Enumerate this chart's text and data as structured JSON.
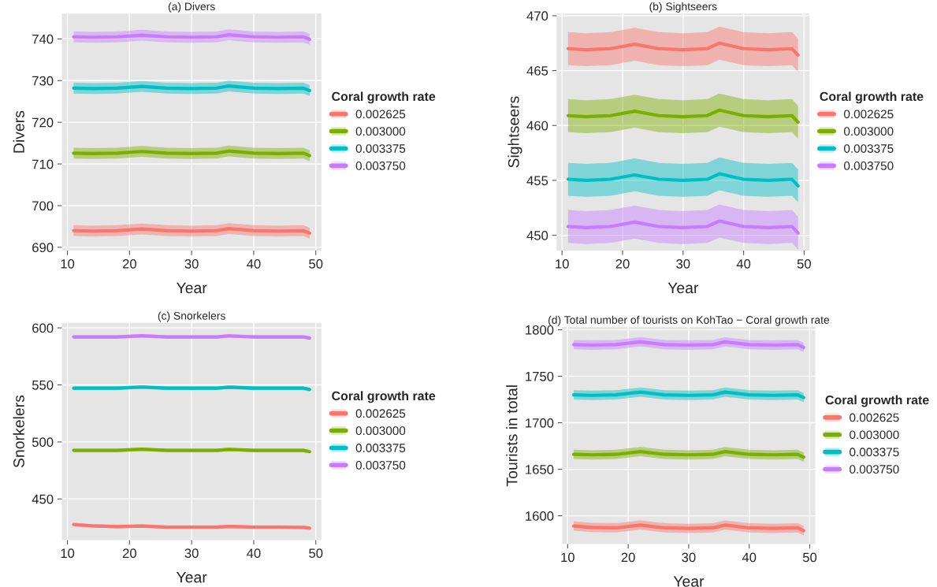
{
  "chart_data": [
    {
      "type": "line",
      "title": "(a) Divers",
      "xlabel": "Year",
      "ylabel": "Divers",
      "legend_title": "Coral growth rate",
      "legend": "right",
      "grid": true,
      "x": [
        11,
        14,
        18,
        22,
        26,
        30,
        34,
        36,
        40,
        44,
        48,
        49
      ],
      "xlim": [
        9.1,
        50.9
      ],
      "xticks": [
        10,
        20,
        30,
        40,
        50
      ],
      "ylim": [
        689.2,
        746.1
      ],
      "yticks": [
        690,
        700,
        710,
        720,
        730,
        740
      ],
      "series": [
        {
          "name": "0.002625",
          "color": "#f8766d",
          "values": [
            694.0,
            693.9,
            694.0,
            694.4,
            694.0,
            693.9,
            694.0,
            694.5,
            694.0,
            693.9,
            694.0,
            693.4
          ],
          "lower": [
            692.7,
            692.6,
            692.7,
            693.1,
            692.7,
            692.6,
            692.7,
            693.2,
            692.7,
            692.6,
            692.7,
            692.1
          ],
          "upper": [
            695.3,
            695.2,
            695.3,
            695.7,
            695.3,
            695.2,
            695.3,
            695.8,
            695.3,
            695.2,
            695.3,
            694.7
          ]
        },
        {
          "name": "0.003000",
          "color": "#7cae00",
          "values": [
            712.6,
            712.5,
            712.6,
            713.0,
            712.6,
            712.5,
            712.6,
            713.1,
            712.6,
            712.5,
            712.6,
            712.0
          ],
          "lower": [
            711.3,
            711.2,
            711.3,
            711.7,
            711.3,
            711.2,
            711.3,
            711.8,
            711.3,
            711.2,
            711.3,
            710.7
          ],
          "upper": [
            713.9,
            713.8,
            713.9,
            714.3,
            713.9,
            713.8,
            713.9,
            714.4,
            713.9,
            713.8,
            713.9,
            713.3
          ]
        },
        {
          "name": "0.003375",
          "color": "#00bfc4",
          "values": [
            728.2,
            728.1,
            728.2,
            728.6,
            728.2,
            728.1,
            728.2,
            728.7,
            728.2,
            728.1,
            728.2,
            727.6
          ],
          "lower": [
            726.9,
            726.8,
            726.9,
            727.3,
            726.9,
            726.8,
            726.9,
            727.4,
            726.9,
            726.8,
            726.9,
            726.3
          ],
          "upper": [
            729.5,
            729.4,
            729.5,
            729.9,
            729.5,
            729.4,
            729.5,
            730.0,
            729.5,
            729.4,
            729.5,
            728.9
          ]
        },
        {
          "name": "0.003750",
          "color": "#c77cff",
          "values": [
            740.5,
            740.4,
            740.5,
            740.9,
            740.5,
            740.4,
            740.5,
            741.0,
            740.5,
            740.4,
            740.5,
            739.9
          ],
          "lower": [
            739.2,
            739.1,
            739.2,
            739.6,
            739.2,
            739.1,
            739.2,
            739.7,
            739.2,
            739.1,
            739.2,
            738.6
          ],
          "upper": [
            741.8,
            741.7,
            741.8,
            742.2,
            741.8,
            741.7,
            741.8,
            742.3,
            741.8,
            741.7,
            741.8,
            741.2
          ]
        }
      ]
    },
    {
      "type": "line",
      "title": "(b) Sightseers",
      "xlabel": "Year",
      "ylabel": "Sightseers",
      "legend_title": "Coral growth rate",
      "legend": "right",
      "grid": true,
      "x": [
        11,
        14,
        18,
        22,
        26,
        30,
        34,
        36,
        40,
        44,
        48,
        49
      ],
      "xlim": [
        9.1,
        50.9
      ],
      "xticks": [
        10,
        20,
        30,
        40,
        50
      ],
      "ylim": [
        448.6,
        470.2
      ],
      "yticks": [
        450,
        455,
        460,
        465,
        470
      ],
      "series": [
        {
          "name": "0.002625",
          "color": "#f8766d",
          "values": [
            467.0,
            466.9,
            467.0,
            467.4,
            467.0,
            466.9,
            467.0,
            467.5,
            467.0,
            466.9,
            467.0,
            466.4
          ],
          "lower": [
            465.5,
            465.4,
            465.5,
            465.9,
            465.5,
            465.4,
            465.5,
            466.0,
            465.5,
            465.4,
            465.5,
            464.9
          ],
          "upper": [
            468.5,
            468.4,
            468.5,
            468.9,
            468.5,
            468.4,
            468.5,
            469.0,
            468.5,
            468.4,
            468.5,
            467.9
          ]
        },
        {
          "name": "0.003000",
          "color": "#7cae00",
          "values": [
            460.9,
            460.8,
            460.9,
            461.3,
            460.9,
            460.8,
            460.9,
            461.4,
            460.9,
            460.8,
            460.9,
            460.3
          ],
          "lower": [
            459.4,
            459.3,
            459.4,
            459.8,
            459.4,
            459.3,
            459.4,
            459.9,
            459.4,
            459.3,
            459.4,
            458.8
          ],
          "upper": [
            462.4,
            462.3,
            462.4,
            462.8,
            462.4,
            462.3,
            462.4,
            462.9,
            462.4,
            462.3,
            462.4,
            461.8
          ]
        },
        {
          "name": "0.003375",
          "color": "#00bfc4",
          "values": [
            455.1,
            455.0,
            455.1,
            455.5,
            455.1,
            455.0,
            455.1,
            455.6,
            455.1,
            455.0,
            455.1,
            454.5
          ],
          "lower": [
            453.6,
            453.5,
            453.6,
            454.0,
            453.6,
            453.5,
            453.6,
            454.1,
            453.6,
            453.5,
            453.6,
            453.0
          ],
          "upper": [
            456.6,
            456.5,
            456.6,
            457.0,
            456.6,
            456.5,
            456.6,
            457.1,
            456.6,
            456.5,
            456.6,
            456.0
          ]
        },
        {
          "name": "0.003750",
          "color": "#c77cff",
          "values": [
            450.8,
            450.7,
            450.8,
            451.2,
            450.8,
            450.7,
            450.8,
            451.3,
            450.8,
            450.7,
            450.8,
            450.2
          ],
          "lower": [
            449.3,
            449.2,
            449.3,
            449.7,
            449.3,
            449.2,
            449.3,
            449.8,
            449.3,
            449.2,
            449.3,
            448.7
          ],
          "upper": [
            452.3,
            452.2,
            452.3,
            452.7,
            452.3,
            452.2,
            452.3,
            452.8,
            452.3,
            452.2,
            452.3,
            451.7
          ]
        }
      ]
    },
    {
      "type": "line",
      "title": "(c) Snorkelers",
      "xlabel": "Year",
      "ylabel": "Snorkelers",
      "legend_title": "Coral growth rate",
      "legend": "right",
      "grid": true,
      "x": [
        11,
        14,
        18,
        22,
        26,
        30,
        34,
        36,
        40,
        44,
        48,
        49
      ],
      "xlim": [
        9.1,
        50.9
      ],
      "xticks": [
        10,
        20,
        30,
        40,
        50
      ],
      "ylim": [
        414,
        604.4
      ],
      "yticks": [
        450,
        500,
        550,
        600
      ],
      "series": [
        {
          "name": "0.002625",
          "color": "#f8766d",
          "values": [
            427.6,
            426.5,
            425.8,
            426.3,
            425.3,
            425.3,
            425.3,
            425.9,
            425.3,
            425.3,
            425.1,
            424.5
          ],
          "lower": [
            426.1,
            425.0,
            424.3,
            424.8,
            423.8,
            423.8,
            423.8,
            424.4,
            423.8,
            423.8,
            423.6,
            423.0
          ],
          "upper": [
            429.1,
            428.0,
            427.3,
            427.8,
            426.8,
            426.8,
            426.8,
            427.4,
            426.8,
            426.8,
            426.6,
            426.0
          ]
        },
        {
          "name": "0.003000",
          "color": "#7cae00",
          "values": [
            492.6,
            492.6,
            492.6,
            493.6,
            492.6,
            492.6,
            492.6,
            493.5,
            492.6,
            492.6,
            492.6,
            491.5
          ],
          "lower": [
            491.1,
            491.1,
            491.1,
            492.1,
            491.1,
            491.1,
            491.1,
            492.0,
            491.1,
            491.1,
            491.1,
            490.0
          ],
          "upper": [
            494.1,
            494.1,
            494.1,
            495.1,
            494.1,
            494.1,
            494.1,
            495.0,
            494.1,
            494.1,
            494.1,
            493.0
          ]
        },
        {
          "name": "0.003375",
          "color": "#00bfc4",
          "values": [
            547.1,
            547.1,
            547.1,
            548.1,
            547.1,
            547.1,
            547.1,
            548.0,
            547.1,
            547.1,
            547.1,
            546.0
          ],
          "lower": [
            545.6,
            545.6,
            545.6,
            546.6,
            545.6,
            545.6,
            545.6,
            546.5,
            545.6,
            545.6,
            545.6,
            544.5
          ],
          "upper": [
            548.6,
            548.6,
            548.6,
            549.6,
            548.6,
            548.6,
            548.6,
            549.5,
            548.6,
            548.6,
            548.6,
            547.5
          ]
        },
        {
          "name": "0.003750",
          "color": "#c77cff",
          "values": [
            592.1,
            592.1,
            592.1,
            593.1,
            592.1,
            592.1,
            592.1,
            593.0,
            592.1,
            592.1,
            592.1,
            591.0
          ],
          "lower": [
            590.6,
            590.6,
            590.6,
            591.6,
            590.6,
            590.6,
            590.6,
            591.5,
            590.6,
            590.6,
            590.6,
            589.5
          ],
          "upper": [
            593.6,
            593.6,
            593.6,
            594.6,
            593.6,
            593.6,
            593.6,
            594.5,
            593.6,
            593.6,
            593.6,
            592.5
          ]
        }
      ]
    },
    {
      "type": "line",
      "title": "(d) Total number of tourists on KohTao − Coral growth rate",
      "xlabel": "Year",
      "ylabel": "Tourists in total",
      "legend_title": "Coral growth rate",
      "legend": "right",
      "grid": true,
      "x": [
        11,
        14,
        18,
        22,
        26,
        30,
        34,
        36,
        40,
        44,
        48,
        49
      ],
      "xlim": [
        9.1,
        50.9
      ],
      "xticks": [
        10,
        20,
        30,
        40,
        50
      ],
      "ylim": [
        1569.5,
        1803
      ],
      "yticks": [
        1600,
        1650,
        1700,
        1750,
        1800
      ],
      "series": [
        {
          "name": "0.002625",
          "color": "#f8766d",
          "values": [
            1589,
            1587.5,
            1587,
            1590,
            1587,
            1586.5,
            1587,
            1590,
            1587,
            1586.5,
            1587,
            1584
          ],
          "lower": [
            1584,
            1582.5,
            1582,
            1585,
            1582,
            1581.5,
            1582,
            1585,
            1582,
            1581.5,
            1582,
            1579
          ],
          "upper": [
            1594,
            1592.5,
            1592,
            1595,
            1592,
            1591.5,
            1592,
            1595,
            1592,
            1591.5,
            1592,
            1589
          ]
        },
        {
          "name": "0.003000",
          "color": "#7cae00",
          "values": [
            1666,
            1665.5,
            1666,
            1669,
            1666,
            1665.5,
            1666,
            1669,
            1666,
            1665.5,
            1666,
            1663
          ],
          "lower": [
            1661,
            1660.5,
            1661,
            1664,
            1661,
            1660.5,
            1661,
            1664,
            1661,
            1660.5,
            1661,
            1658
          ],
          "upper": [
            1671,
            1670.5,
            1671,
            1674,
            1671,
            1670.5,
            1671,
            1674,
            1671,
            1670.5,
            1671,
            1668
          ]
        },
        {
          "name": "0.003375",
          "color": "#00bfc4",
          "values": [
            1730,
            1729.5,
            1730,
            1733,
            1730,
            1729.5,
            1730,
            1733,
            1730,
            1729.5,
            1730,
            1727
          ],
          "lower": [
            1725,
            1724.5,
            1725,
            1728,
            1725,
            1724.5,
            1725,
            1728,
            1725,
            1724.5,
            1725,
            1722
          ],
          "upper": [
            1735,
            1734.5,
            1735,
            1738,
            1735,
            1734.5,
            1735,
            1738,
            1735,
            1734.5,
            1735,
            1732
          ]
        },
        {
          "name": "0.003750",
          "color": "#c77cff",
          "values": [
            1784,
            1783.5,
            1784,
            1787,
            1784,
            1783.5,
            1784,
            1787,
            1784,
            1783.5,
            1784,
            1781
          ],
          "lower": [
            1779,
            1778.5,
            1779,
            1782,
            1779,
            1778.5,
            1779,
            1782,
            1779,
            1778.5,
            1779,
            1776
          ],
          "upper": [
            1789,
            1788.5,
            1789,
            1792,
            1789,
            1788.5,
            1789,
            1792,
            1789,
            1788.5,
            1789,
            1786
          ]
        }
      ]
    }
  ]
}
